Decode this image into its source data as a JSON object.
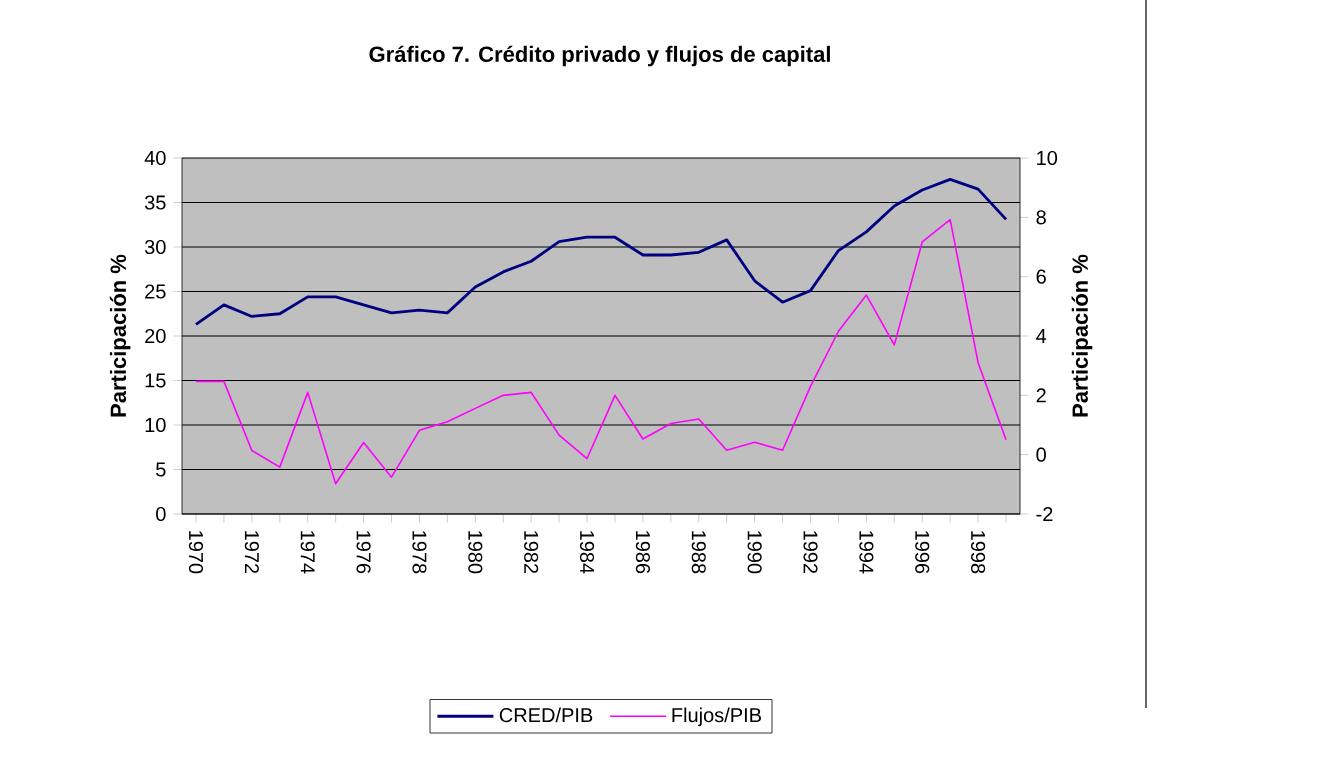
{
  "chart_data": {
    "type": "line",
    "title": "Gráfico 7. Crédito privado y flujos de capital",
    "categories": [
      "1970",
      null,
      "1972",
      null,
      "1974",
      null,
      "1976",
      null,
      "1978",
      null,
      "1980",
      null,
      "1982",
      null,
      "1984",
      null,
      "1986",
      null,
      "1988",
      null,
      "1990",
      null,
      "1992",
      null,
      "1994",
      null,
      "1996",
      null,
      "1998",
      null
    ],
    "series": [
      {
        "name": "CRED/PIB",
        "color": "#000080",
        "values": [
          21.3,
          23.5,
          22.2,
          22.5,
          24.4,
          24.4,
          23.5,
          22.6,
          22.9,
          22.6,
          25.5,
          27.2,
          28.4,
          30.6,
          31.1,
          31.1,
          29.1,
          29.1,
          29.4,
          30.8,
          26.2,
          23.8,
          25.1,
          29.6,
          31.7,
          34.6,
          36.4,
          37.6,
          36.5,
          33.1
        ]
      },
      {
        "name": "Flujos/PIB",
        "color": "#ff00ff",
        "axis": "y2",
        "values": [
          2.47,
          2.47,
          0.14,
          -0.42,
          2.1,
          -0.98,
          0.41,
          -0.76,
          0.82,
          1.11,
          1.56,
          2.0,
          2.1,
          0.66,
          -0.13,
          2.0,
          0.53,
          1.05,
          1.2,
          0.15,
          0.42,
          0.15,
          2.3,
          4.16,
          5.38,
          3.7,
          7.17,
          7.92,
          3.1,
          0.5
        ]
      }
    ],
    "ylabel": "Participación %",
    "y2label": "Participación %",
    "ylim": [
      0,
      40
    ],
    "yticks": [
      0,
      5,
      10,
      15,
      20,
      25,
      30,
      35,
      40
    ],
    "y2lim": [
      -2,
      10
    ],
    "y2ticks": [
      -2,
      0,
      2,
      4,
      6,
      8,
      10
    ],
    "grid": "y",
    "legend": "bottom"
  }
}
